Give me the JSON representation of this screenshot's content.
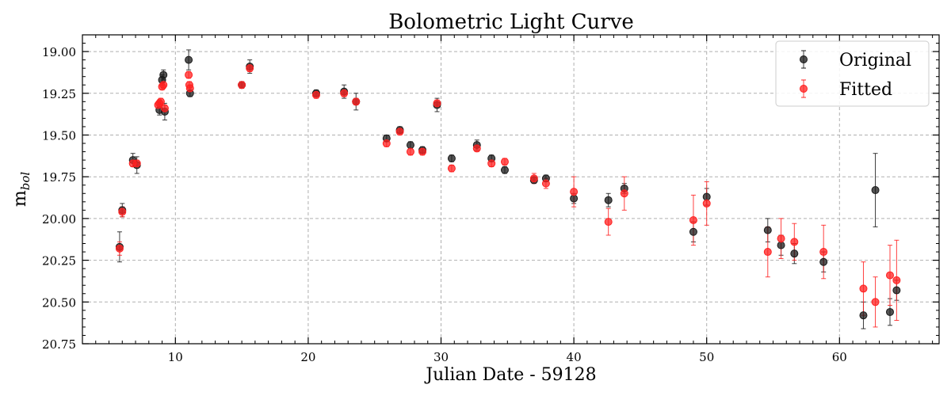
{
  "chart_data": {
    "type": "scatter",
    "title": "Bolometric Light Curve",
    "xlabel": "Julian Date - 59128",
    "ylabel_main": "m",
    "ylabel_sub": "bol",
    "xlim": [
      3,
      67.5
    ],
    "ylim": [
      20.75,
      18.9
    ],
    "y_inverted": true,
    "grid": true,
    "legend_position": "top-right",
    "xticks": [
      10,
      20,
      30,
      40,
      50,
      60
    ],
    "xtick_labels": [
      "10",
      "20",
      "30",
      "40",
      "50",
      "60"
    ],
    "yticks": [
      19.0,
      19.25,
      19.5,
      19.75,
      20.0,
      20.25,
      20.5,
      20.75
    ],
    "ytick_labels": [
      "19.00",
      "19.25",
      "19.50",
      "19.75",
      "20.00",
      "20.25",
      "20.50",
      "20.75"
    ],
    "series": [
      {
        "name": "Original",
        "color": "#1a1a1a",
        "x": [
          5.8,
          6.0,
          6.8,
          7.1,
          8.8,
          9.0,
          9.1,
          9.2,
          11.0,
          11.1,
          15.0,
          15.6,
          20.6,
          22.7,
          23.6,
          25.9,
          26.9,
          27.7,
          28.6,
          29.7,
          30.8,
          32.7,
          33.8,
          34.8,
          37.0,
          37.9,
          40.0,
          42.6,
          43.8,
          49.0,
          50.0,
          54.6,
          55.6,
          56.6,
          58.8,
          61.8,
          62.7,
          63.8,
          64.3
        ],
        "y": [
          20.17,
          19.95,
          19.65,
          19.68,
          19.35,
          19.17,
          19.14,
          19.36,
          19.05,
          19.25,
          19.2,
          19.09,
          19.25,
          19.24,
          19.3,
          19.52,
          19.47,
          19.56,
          19.59,
          19.32,
          19.64,
          19.56,
          19.64,
          19.71,
          19.77,
          19.76,
          19.88,
          19.89,
          19.82,
          20.08,
          19.87,
          20.07,
          20.16,
          20.21,
          20.26,
          20.58,
          19.83,
          20.56,
          20.43
        ],
        "yerr": [
          0.09,
          0.04,
          0.04,
          0.05,
          0.03,
          0.03,
          0.03,
          0.05,
          0.06,
          0.02,
          0.02,
          0.04,
          0.02,
          0.04,
          0.05,
          0.02,
          0.02,
          0.02,
          0.02,
          0.04,
          0.02,
          0.03,
          0.02,
          0.02,
          0.02,
          0.02,
          0.03,
          0.04,
          0.03,
          0.06,
          0.05,
          0.07,
          0.06,
          0.06,
          0.06,
          0.08,
          0.22,
          0.08,
          0.06
        ]
      },
      {
        "name": "Fitted",
        "color": "#ff2020",
        "x": [
          5.8,
          6.0,
          6.8,
          7.1,
          8.7,
          8.8,
          8.9,
          9.0,
          9.1,
          9.2,
          11.0,
          11.05,
          11.1,
          15.0,
          15.6,
          20.6,
          22.7,
          23.6,
          25.9,
          26.9,
          27.7,
          28.6,
          29.7,
          30.8,
          32.7,
          33.8,
          34.8,
          37.0,
          37.9,
          40.0,
          42.6,
          43.8,
          49.0,
          50.0,
          54.6,
          55.6,
          56.6,
          58.8,
          61.8,
          62.7,
          63.8,
          64.3
        ],
        "y": [
          20.18,
          19.96,
          19.67,
          19.67,
          19.32,
          19.31,
          19.3,
          19.21,
          19.2,
          19.34,
          19.14,
          19.2,
          19.22,
          19.2,
          19.1,
          19.26,
          19.25,
          19.3,
          19.55,
          19.48,
          19.6,
          19.6,
          19.31,
          19.7,
          19.58,
          19.67,
          19.66,
          19.76,
          19.79,
          19.84,
          20.02,
          19.85,
          20.01,
          19.91,
          20.2,
          20.12,
          20.14,
          20.2,
          20.42,
          20.5,
          20.34,
          20.37
        ],
        "yerr": [
          0.04,
          0.03,
          0.02,
          0.02,
          0.02,
          0.02,
          0.02,
          0.02,
          0.02,
          0.02,
          0.02,
          0.02,
          0.02,
          0.02,
          0.02,
          0.02,
          0.02,
          0.02,
          0.02,
          0.02,
          0.02,
          0.02,
          0.02,
          0.02,
          0.02,
          0.02,
          0.02,
          0.03,
          0.03,
          0.09,
          0.08,
          0.1,
          0.15,
          0.13,
          0.15,
          0.12,
          0.11,
          0.16,
          0.16,
          0.15,
          0.18,
          0.24
        ]
      }
    ]
  }
}
